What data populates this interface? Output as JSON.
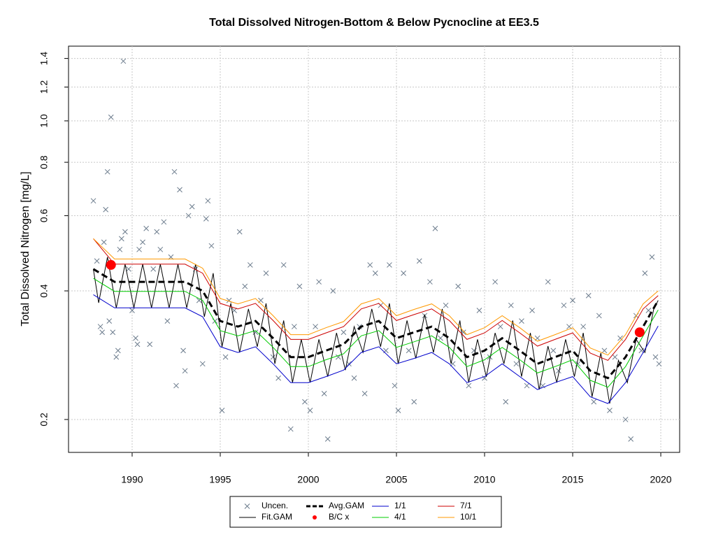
{
  "chart_data": {
    "type": "line",
    "title": "Total Dissolved Nitrogen-Bottom & Below Pycnocline at EE3.5",
    "ylabel": "Total Dissolved Nitrogen [mg/L]",
    "ylog": true,
    "grid": true,
    "legend": "bottom",
    "xlim": [
      1986.39,
      2021.07
    ],
    "ylim": [
      0.1675,
      1.496
    ],
    "xticks": [
      1990,
      1995,
      2000,
      2005,
      2010,
      2015,
      2020
    ],
    "yticks": [
      0.2,
      0.4,
      0.6,
      0.8,
      {
        "value": 1,
        "label": "1.0"
      },
      1.2,
      1.4
    ],
    "series": [
      {
        "name": "Uncen.",
        "kind": "scatter",
        "color": "#6b7b8c",
        "x": [
          1987.8,
          1988,
          1988.2,
          1988.3,
          1988.4,
          1988.5,
          1988.6,
          1988.7,
          1988.8,
          1988.9,
          1989.1,
          1989.2,
          1989.3,
          1989.4,
          1989.5,
          1989.6,
          1989.8,
          1990,
          1990.2,
          1990.3,
          1990.4,
          1990.6,
          1990.8,
          1991,
          1991.2,
          1991.4,
          1991.6,
          1991.8,
          1992,
          1992.2,
          1992.4,
          1992.5,
          1992.7,
          1992.9,
          1993,
          1993.2,
          1993.4,
          1993.6,
          1993.8,
          1994,
          1994.2,
          1994.3,
          1994.5,
          1994.7,
          1995.1,
          1995.3,
          1995.5,
          1995.8,
          1996.1,
          1996.4,
          1996.7,
          1997,
          1997.3,
          1997.6,
          1998,
          1998.3,
          1998.6,
          1999,
          1999.2,
          1999.5,
          1999.8,
          2000.1,
          2000.4,
          2000.6,
          2000.9,
          2001.1,
          2001.4,
          2001.7,
          2002,
          2002.3,
          2002.6,
          2002.9,
          2003.2,
          2003.5,
          2003.8,
          2004.1,
          2004.4,
          2004.6,
          2004.9,
          2005.1,
          2005.4,
          2005.7,
          2006,
          2006.3,
          2006.6,
          2006.9,
          2007.2,
          2007.5,
          2007.8,
          2008.2,
          2008.5,
          2008.8,
          2009.1,
          2009.4,
          2009.7,
          2010,
          2010.3,
          2010.6,
          2010.9,
          2011.2,
          2011.5,
          2011.8,
          2012.1,
          2012.4,
          2012.7,
          2013,
          2013.3,
          2013.6,
          2013.9,
          2014.2,
          2014.5,
          2014.8,
          2015,
          2015.3,
          2015.6,
          2015.9,
          2016.2,
          2016.5,
          2016.8,
          2017.1,
          2017.4,
          2017.7,
          2018,
          2018.3,
          2018.6,
          2018.9,
          2019.1,
          2019.3,
          2019.5,
          2019.7,
          2019.9
        ],
        "values": [
          0.65,
          0.47,
          0.33,
          0.32,
          0.52,
          0.62,
          0.76,
          0.34,
          1.02,
          0.32,
          0.28,
          0.29,
          0.5,
          0.53,
          1.38,
          0.55,
          0.45,
          0.36,
          0.31,
          0.3,
          0.5,
          0.52,
          0.56,
          0.3,
          0.45,
          0.55,
          0.5,
          0.58,
          0.34,
          0.48,
          0.76,
          0.24,
          0.69,
          0.29,
          0.26,
          0.6,
          0.63,
          0.45,
          0.38,
          0.27,
          0.59,
          0.65,
          0.51,
          0.34,
          0.21,
          0.28,
          0.38,
          0.36,
          0.55,
          0.41,
          0.46,
          0.32,
          0.38,
          0.44,
          0.28,
          0.25,
          0.46,
          0.19,
          0.33,
          0.41,
          0.22,
          0.21,
          0.33,
          0.42,
          0.23,
          0.18,
          0.4,
          0.28,
          0.32,
          0.27,
          0.25,
          0.33,
          0.23,
          0.46,
          0.44,
          0.37,
          0.29,
          0.46,
          0.24,
          0.21,
          0.44,
          0.29,
          0.22,
          0.47,
          0.35,
          0.42,
          0.56,
          0.31,
          0.37,
          0.27,
          0.41,
          0.32,
          0.24,
          0.29,
          0.36,
          0.25,
          0.28,
          0.42,
          0.33,
          0.22,
          0.37,
          0.27,
          0.34,
          0.24,
          0.36,
          0.31,
          0.24,
          0.42,
          0.29,
          0.26,
          0.37,
          0.33,
          0.38,
          0.27,
          0.33,
          0.39,
          0.22,
          0.35,
          0.29,
          0.21,
          0.28,
          0.31,
          0.2,
          0.18,
          0.35,
          0.29,
          0.44,
          0.36,
          0.48,
          0.28,
          0.27
        ]
      },
      {
        "name": "Fit.GAM",
        "kind": "line",
        "color": "#000000",
        "width": 1,
        "x": [
          1987.8,
          1988.1,
          1988.6,
          1989.1,
          1989.6,
          1990.1,
          1990.6,
          1991.1,
          1991.6,
          1992.1,
          1992.6,
          1993.1,
          1993.6,
          1994.1,
          1994.6,
          1995.1,
          1995.6,
          1996.1,
          1996.6,
          1997.1,
          1997.6,
          1998.1,
          1998.6,
          1999.1,
          1999.6,
          2000.1,
          2000.6,
          2001.1,
          2001.6,
          2002.1,
          2002.6,
          2003.1,
          2003.6,
          2004.1,
          2004.6,
          2005.1,
          2005.6,
          2006.1,
          2006.6,
          2007.1,
          2007.6,
          2008.1,
          2008.6,
          2009.1,
          2009.6,
          2010.1,
          2010.6,
          2011.1,
          2011.6,
          2012.1,
          2012.6,
          2013.1,
          2013.6,
          2014.1,
          2014.6,
          2015.1,
          2015.6,
          2016.1,
          2016.6,
          2017.1,
          2017.6,
          2018.1,
          2018.6,
          2019.1,
          2019.6,
          2019.85
        ],
        "values": [
          0.45,
          0.375,
          0.48,
          0.365,
          0.462,
          0.365,
          0.462,
          0.365,
          0.462,
          0.365,
          0.462,
          0.365,
          0.462,
          0.348,
          0.44,
          0.296,
          0.374,
          0.287,
          0.363,
          0.296,
          0.374,
          0.27,
          0.341,
          0.244,
          0.308,
          0.244,
          0.308,
          0.252,
          0.319,
          0.261,
          0.33,
          0.287,
          0.363,
          0.296,
          0.374,
          0.27,
          0.341,
          0.278,
          0.352,
          0.287,
          0.363,
          0.27,
          0.341,
          0.244,
          0.308,
          0.252,
          0.319,
          0.27,
          0.341,
          0.252,
          0.319,
          0.235,
          0.297,
          0.244,
          0.308,
          0.252,
          0.319,
          0.226,
          0.286,
          0.218,
          0.275,
          0.244,
          0.308,
          0.287,
          0.363,
          0.38
        ]
      },
      {
        "name": "Avg.GAM",
        "kind": "line",
        "color": "#000000",
        "width": 3,
        "dash": true,
        "x": [
          1987.8,
          1989,
          1990,
          1991,
          1992,
          1993,
          1994,
          1995,
          1996,
          1997,
          1998,
          1999,
          2000,
          2001,
          2002,
          2003,
          2004,
          2005,
          2006,
          2007,
          2008,
          2009,
          2010,
          2011,
          2012,
          2013,
          2014,
          2015,
          2016,
          2017,
          2018,
          2019,
          2019.85
        ],
        "values": [
          0.45,
          0.42,
          0.42,
          0.42,
          0.42,
          0.42,
          0.4,
          0.34,
          0.33,
          0.34,
          0.31,
          0.28,
          0.28,
          0.29,
          0.3,
          0.33,
          0.34,
          0.31,
          0.32,
          0.33,
          0.31,
          0.28,
          0.29,
          0.31,
          0.29,
          0.27,
          0.28,
          0.29,
          0.26,
          0.25,
          0.28,
          0.33,
          0.38
        ]
      },
      {
        "name": "B/C x",
        "kind": "dot",
        "color": "#ff0000",
        "x": [
          1988.8,
          2018.8
        ],
        "values": [
          0.46,
          0.32
        ]
      },
      {
        "name": "1/1",
        "kind": "line",
        "color": "#0000cc",
        "width": 1,
        "x": [
          1987.8,
          1989,
          1990,
          1991,
          1992,
          1993,
          1994,
          1995,
          1996,
          1997,
          1998,
          1999,
          2000,
          2001,
          2002,
          2003,
          2004,
          2005,
          2006,
          2007,
          2008,
          2009,
          2010,
          2011,
          2012,
          2013,
          2014,
          2015,
          2016,
          2017,
          2018,
          2019,
          2019.85
        ],
        "values": [
          0.392,
          0.365,
          0.365,
          0.365,
          0.365,
          0.365,
          0.348,
          0.296,
          0.287,
          0.296,
          0.27,
          0.244,
          0.244,
          0.252,
          0.261,
          0.287,
          0.296,
          0.27,
          0.278,
          0.287,
          0.27,
          0.244,
          0.252,
          0.27,
          0.252,
          0.235,
          0.244,
          0.252,
          0.226,
          0.218,
          0.244,
          0.287,
          0.331
        ]
      },
      {
        "name": "4/1",
        "kind": "line",
        "color": "#00cc00",
        "width": 1,
        "x": [
          1987.8,
          1989,
          1990,
          1991,
          1992,
          1993,
          1994,
          1995,
          1996,
          1997,
          1998,
          1999,
          2000,
          2001,
          2002,
          2003,
          2004,
          2005,
          2006,
          2007,
          2008,
          2009,
          2010,
          2011,
          2012,
          2013,
          2014,
          2015,
          2016,
          2017,
          2018,
          2019,
          2019.85
        ],
        "values": [
          0.428,
          0.399,
          0.399,
          0.399,
          0.399,
          0.399,
          0.38,
          0.323,
          0.314,
          0.323,
          0.295,
          0.266,
          0.266,
          0.276,
          0.285,
          0.314,
          0.323,
          0.295,
          0.304,
          0.314,
          0.295,
          0.266,
          0.276,
          0.295,
          0.276,
          0.257,
          0.266,
          0.276,
          0.247,
          0.238,
          0.266,
          0.314,
          0.361
        ]
      },
      {
        "name": "7/1",
        "kind": "line",
        "color": "#cc0000",
        "width": 1,
        "x": [
          1987.8,
          1989,
          1990,
          1991,
          1992,
          1993,
          1994,
          1995,
          1996,
          1997,
          1998,
          1999,
          2000,
          2001,
          2002,
          2003,
          2004,
          2005,
          2006,
          2007,
          2008,
          2009,
          2010,
          2011,
          2012,
          2013,
          2014,
          2015,
          2016,
          2017,
          2018,
          2019,
          2019.85
        ],
        "values": [
          0.53,
          0.462,
          0.462,
          0.462,
          0.462,
          0.462,
          0.44,
          0.374,
          0.363,
          0.374,
          0.341,
          0.308,
          0.308,
          0.319,
          0.33,
          0.363,
          0.374,
          0.341,
          0.352,
          0.363,
          0.341,
          0.308,
          0.319,
          0.341,
          0.319,
          0.297,
          0.308,
          0.319,
          0.286,
          0.275,
          0.308,
          0.363,
          0.39
        ]
      },
      {
        "name": "10/1",
        "kind": "line",
        "color": "#ff9900",
        "width": 1,
        "x": [
          1987.8,
          1989,
          1990,
          1991,
          1992,
          1993,
          1994,
          1995,
          1996,
          1997,
          1998,
          1999,
          2000,
          2001,
          2002,
          2003,
          2004,
          2005,
          2006,
          2007,
          2008,
          2009,
          2010,
          2011,
          2012,
          2013,
          2014,
          2015,
          2016,
          2017,
          2018,
          2019,
          2019.85
        ],
        "values": [
          0.53,
          0.475,
          0.475,
          0.475,
          0.475,
          0.475,
          0.452,
          0.384,
          0.373,
          0.384,
          0.35,
          0.316,
          0.316,
          0.328,
          0.339,
          0.373,
          0.384,
          0.35,
          0.362,
          0.373,
          0.35,
          0.316,
          0.328,
          0.35,
          0.328,
          0.305,
          0.316,
          0.328,
          0.294,
          0.283,
          0.316,
          0.373,
          0.4
        ]
      }
    ]
  }
}
